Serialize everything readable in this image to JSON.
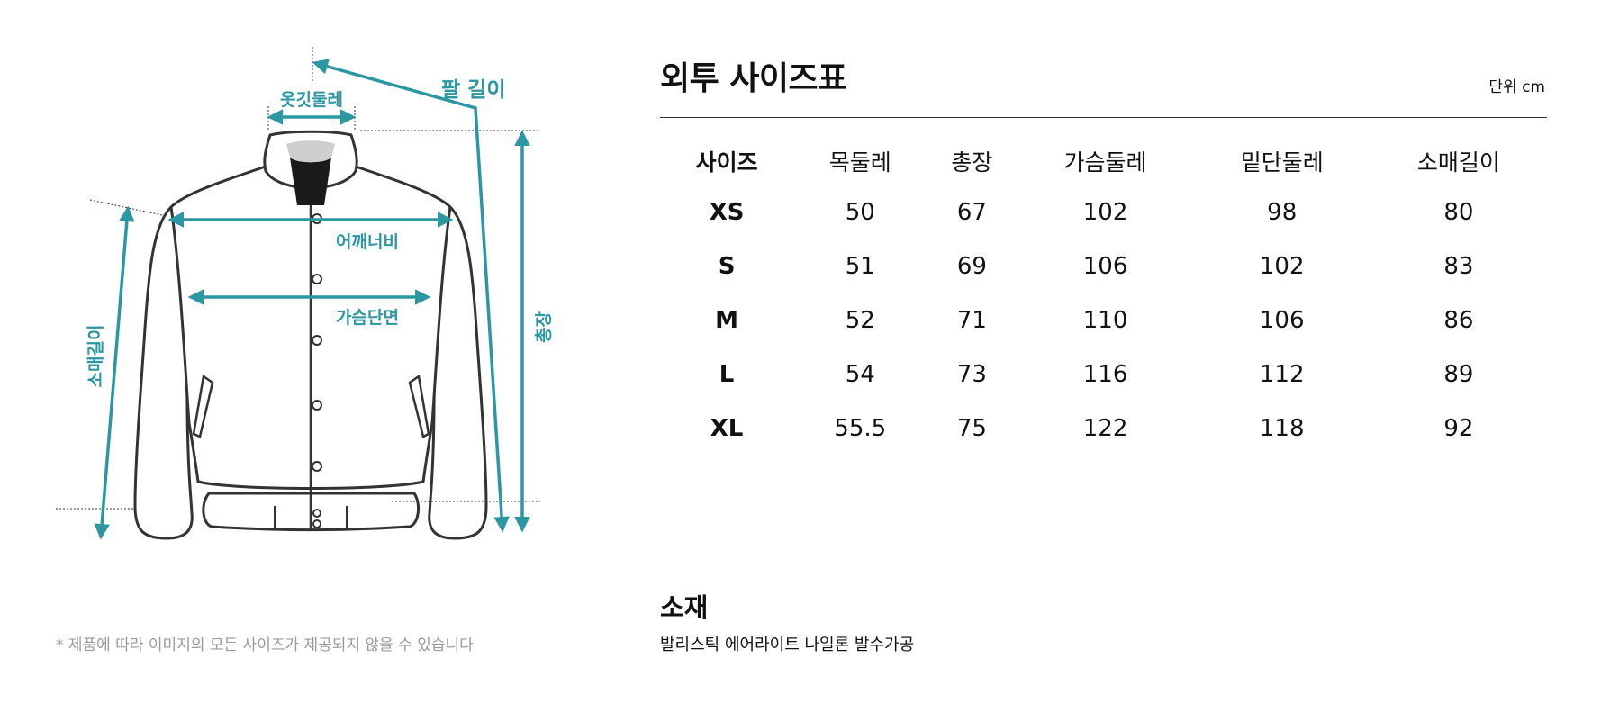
{
  "diagram": {
    "labels": {
      "collar": "옷깃둘레",
      "arm_length": "팔 길이",
      "shoulder": "어깨너비",
      "chest": "가슴단면",
      "total_length": "총장",
      "sleeve": "소매길이"
    },
    "accent_color": "#2a97a3",
    "footnote": "* 제품에 따라 이미지의 모든 사이즈가 제공되지 않을 수 있습니다"
  },
  "size_chart": {
    "title": "외투 사이즈표",
    "unit": "단위 cm",
    "headers": [
      "사이즈",
      "목둘레",
      "총장",
      "가슴둘레",
      "밑단둘레",
      "소매길이"
    ],
    "rows": [
      [
        "XS",
        "50",
        "67",
        "102",
        "98",
        "80"
      ],
      [
        "S",
        "51",
        "69",
        "106",
        "102",
        "83"
      ],
      [
        "M",
        "52",
        "71",
        "110",
        "106",
        "86"
      ],
      [
        "L",
        "54",
        "73",
        "116",
        "112",
        "89"
      ],
      [
        "XL",
        "55.5",
        "75",
        "122",
        "118",
        "92"
      ]
    ]
  },
  "material": {
    "title": "소재",
    "description": "발리스틱 에어라이트 나일론 발수가공"
  }
}
